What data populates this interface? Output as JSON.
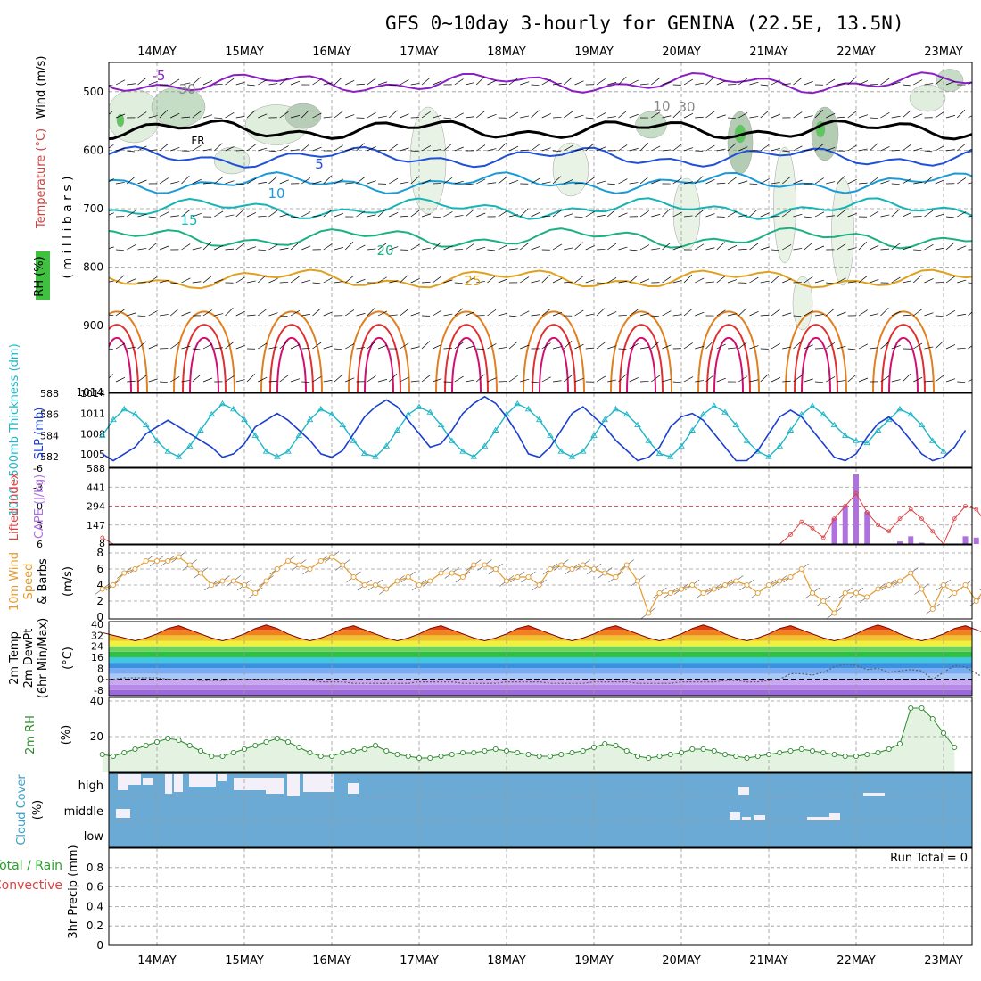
{
  "title": "GFS 0~10day 3-hourly for GENINA (22.5E, 13.5N)",
  "dates": [
    "14MAY",
    "15MAY",
    "16MAY",
    "17MAY",
    "18MAY",
    "19MAY",
    "20MAY",
    "21MAY",
    "22MAY",
    "23MAY"
  ],
  "chart_data": [
    {
      "panel": "upper-air",
      "type": "contour",
      "ylabel_parts": [
        "Wind (m/s)",
        "Temperature (°C)",
        "RH (%)"
      ],
      "ylabel2": "( m i l l i b a r s )",
      "ylim": [
        1014,
        450
      ],
      "yticks": [
        500,
        600,
        700,
        800,
        900,
        1014
      ],
      "contour_labels": [
        "-5",
        "FR",
        "5",
        "10",
        "15",
        "20",
        "25",
        "30",
        "10",
        "30"
      ],
      "isotherms": [
        {
          "name": "-5",
          "color": "#8a1fc4",
          "mean_mb": 485
        },
        {
          "name": "FR",
          "color": "#000000",
          "mean_mb": 565
        },
        {
          "name": "5",
          "color": "#2050d8",
          "mean_mb": 612
        },
        {
          "name": "10",
          "color": "#1a9ad8",
          "mean_mb": 656
        },
        {
          "name": "15",
          "color": "#16b4b4",
          "mean_mb": 700
        },
        {
          "name": "20",
          "color": "#1bb083",
          "mean_mb": 750
        },
        {
          "name": "25",
          "color": "#e0a020",
          "mean_mb": 820
        }
      ]
    },
    {
      "panel": "thickness-slp",
      "type": "line",
      "ylabel_left": "1000~500mb Thickness (dm)",
      "ylabel_right": "SLP (mb)",
      "yticks_left": [
        582,
        584,
        586,
        588
      ],
      "yticks_right": [
        1005,
        1008,
        1011,
        1014
      ],
      "ylim_left": [
        581,
        588
      ],
      "ylim_right": [
        1003,
        1014
      ],
      "series": [
        {
          "name": "Thickness",
          "color": "#1fb6c8",
          "values": [
            584,
            585.5,
            586.5,
            586,
            585,
            583.5,
            582.5,
            582,
            583,
            584.5,
            586,
            587,
            586.5,
            585.5,
            584,
            582.5,
            582,
            582.5,
            584,
            585.5,
            586.5,
            586,
            585,
            583.5,
            582.3,
            582,
            583,
            584.5,
            586,
            586.7,
            586.2,
            585,
            583.5,
            582.5,
            582,
            583,
            584.5,
            586,
            587,
            586.5,
            585.5,
            584,
            582.5,
            582,
            582.5,
            584,
            585.5,
            586.5,
            586,
            585,
            583.5,
            582.3,
            582,
            583,
            584.5,
            586,
            586.8,
            586.2,
            585,
            583.5,
            582.5,
            582,
            583,
            584.5,
            586,
            586.8,
            586,
            585,
            584,
            583.5,
            583.3,
            584.5,
            585.5,
            586.5,
            586,
            585,
            583.5,
            582.5
          ]
        },
        {
          "name": "SLP",
          "color": "#1a3fd0",
          "values": [
            1005,
            1004,
            1005,
            1006,
            1008,
            1009,
            1010,
            1009,
            1008,
            1007,
            1006,
            1004.5,
            1005,
            1006.5,
            1009,
            1010,
            1011,
            1010,
            1008.5,
            1007,
            1005,
            1004.5,
            1005.5,
            1008,
            1010.5,
            1012,
            1013,
            1012,
            1010,
            1008,
            1006,
            1006.5,
            1008.5,
            1011,
            1012.5,
            1013.5,
            1012.5,
            1010.5,
            1008,
            1005,
            1004.5,
            1006,
            1008.5,
            1011,
            1012,
            1010.5,
            1009,
            1007,
            1005.5,
            1004,
            1004.5,
            1006,
            1009,
            1010.5,
            1011,
            1010,
            1008,
            1006,
            1004,
            1004,
            1005.5,
            1008,
            1010.5,
            1011.5,
            1010.5,
            1008.5,
            1006.5,
            1004.5,
            1004,
            1005,
            1007.5,
            1009.5,
            1010.5,
            1009,
            1007,
            1005,
            1004,
            1004.5,
            1006,
            1008.5
          ]
        }
      ]
    },
    {
      "panel": "cape-li",
      "type": "bar+line",
      "ylabel_left": "Lifted Index",
      "ylabel_right": "CAPE (J/kg)",
      "yticks_left": [
        -6,
        -3,
        0,
        3,
        6
      ],
      "yticks_right": [
        8,
        147,
        294,
        441,
        588
      ],
      "ylim_left": [
        6,
        -6
      ],
      "ylim_right": [
        0,
        588
      ],
      "series": [
        {
          "name": "Lifted Index",
          "color": "#e04040",
          "values": [
            5,
            6,
            6,
            6,
            6,
            6,
            6,
            6,
            6,
            6,
            6,
            6,
            6,
            6,
            6,
            6,
            6,
            6,
            6,
            6,
            6,
            6,
            6,
            6,
            6,
            6,
            6,
            6,
            6,
            6,
            6,
            6,
            6,
            6,
            6,
            6,
            6,
            6,
            6,
            6,
            6,
            6,
            6,
            6,
            6,
            6,
            6,
            6,
            6,
            6,
            6,
            6,
            6,
            6,
            6,
            6,
            6,
            6,
            6,
            6,
            6,
            6,
            6,
            4.5,
            2.5,
            3.5,
            5,
            2,
            0,
            -2,
            1,
            3,
            4,
            2,
            0.5,
            2,
            4,
            6,
            2,
            0,
            0.5,
            3,
            4,
            5,
            6,
            5
          ]
        },
        {
          "name": "CAPE",
          "color": "#b070e0",
          "values": [
            0,
            0,
            0,
            0,
            0,
            0,
            0,
            0,
            0,
            0,
            0,
            0,
            0,
            0,
            0,
            0,
            0,
            0,
            0,
            0,
            0,
            0,
            0,
            0,
            0,
            0,
            0,
            0,
            0,
            0,
            0,
            0,
            0,
            0,
            0,
            0,
            0,
            0,
            0,
            0,
            0,
            0,
            0,
            0,
            0,
            0,
            0,
            0,
            0,
            0,
            0,
            0,
            0,
            0,
            0,
            0,
            0,
            0,
            0,
            0,
            0,
            0,
            0,
            0,
            0,
            0,
            0,
            200,
            300,
            540,
            250,
            0,
            0,
            20,
            60,
            10,
            0,
            0,
            0,
            60,
            50,
            30,
            0,
            0,
            0,
            0
          ]
        }
      ]
    },
    {
      "panel": "wind10m",
      "type": "line",
      "ylabel": "10m Wind Speed & Barbs (m/s)",
      "yticks": [
        0,
        2,
        4,
        6,
        8
      ],
      "ylim": [
        0,
        9
      ],
      "series": [
        {
          "name": "10m Wind Speed",
          "color": "#e49a30",
          "values": [
            3.5,
            4,
            5.5,
            6,
            7,
            7,
            7,
            7.5,
            6.5,
            5.5,
            4,
            4.5,
            4.5,
            4,
            3,
            4.5,
            6,
            7,
            6.5,
            6,
            7,
            7.5,
            6.5,
            5,
            4,
            4,
            3.5,
            4.5,
            5,
            4,
            4.5,
            5.5,
            5.5,
            5,
            6.5,
            6.5,
            6,
            4.5,
            5,
            5,
            4,
            6,
            6.5,
            6,
            6.5,
            6,
            5.5,
            5,
            6.5,
            4.5,
            0.5,
            3,
            3,
            3.5,
            4,
            3,
            3.5,
            4,
            4.5,
            4,
            3,
            4,
            4.5,
            5,
            6,
            3,
            2,
            0.5,
            3,
            3,
            2.5,
            3.5,
            4,
            4.5,
            5.5,
            3.5,
            1,
            4,
            3,
            4,
            2,
            4,
            4,
            3,
            3,
            3.5,
            2,
            3,
            2.5,
            5.5
          ]
        }
      ]
    },
    {
      "panel": "temp2m",
      "type": "area+line",
      "ylabel": "2m Temp 2m DewPt (6hr Min/Max) (°C)",
      "yticks": [
        -8,
        0,
        8,
        16,
        24,
        32,
        40
      ],
      "ylim": [
        -12,
        42
      ],
      "series": [
        {
          "name": "2m Temp",
          "color": "#7a0000",
          "values": [
            34,
            32,
            30,
            28,
            30,
            33,
            37,
            39,
            36,
            33,
            30,
            28,
            30,
            33,
            37,
            39.5,
            37,
            33,
            30,
            28,
            30,
            33,
            37,
            39,
            36,
            33,
            30,
            28,
            30,
            33,
            37,
            39,
            36,
            33,
            30,
            28,
            30,
            33,
            37,
            39,
            36,
            33,
            30,
            28,
            30,
            33,
            37,
            39,
            36,
            33,
            30,
            28,
            30,
            33,
            37,
            39.5,
            37,
            33,
            30,
            28,
            30,
            33,
            37,
            39,
            36,
            33,
            30,
            28,
            30,
            33,
            37,
            39.5,
            37,
            33,
            30,
            28,
            30,
            33,
            37,
            39,
            36,
            33,
            30,
            28,
            30,
            33,
            36,
            38,
            35,
            30
          ]
        },
        {
          "name": "2m DewPt",
          "color": "#606060",
          "values": [
            0,
            0,
            1,
            1,
            1,
            1,
            0,
            0,
            0,
            -1,
            -1,
            -1,
            0,
            0,
            0,
            0,
            0,
            0,
            0,
            -1,
            -2,
            -2,
            -2,
            -3,
            -3,
            -3,
            -3,
            -3,
            -3,
            -2,
            -2,
            -2,
            -2,
            -3,
            -3,
            -3,
            -3,
            -2,
            -2,
            -2,
            -2,
            -3,
            -3,
            -3,
            -3,
            -2,
            -2,
            -2,
            -2,
            -3,
            -3,
            -3,
            -3,
            -2,
            -2,
            -2,
            -2,
            -1,
            -1,
            -2,
            -2,
            -1,
            0,
            4,
            4,
            3,
            5,
            9,
            11,
            10,
            7,
            8,
            5,
            6,
            7,
            6,
            0,
            5,
            10,
            9,
            4,
            0,
            -1,
            -1,
            -2,
            -2,
            -2,
            -3,
            -3,
            -2,
            2
          ]
        }
      ]
    },
    {
      "panel": "rh2m",
      "type": "area+line",
      "ylabel": "2m RH (%)",
      "yticks": [
        20,
        40
      ],
      "ylim": [
        0,
        42
      ],
      "series": [
        {
          "name": "2m RH",
          "color": "#2a8a2a",
          "values": [
            10,
            9,
            11,
            13,
            15,
            17,
            19,
            18,
            15,
            12,
            9,
            9,
            11,
            13,
            15,
            17,
            19,
            17,
            14,
            11,
            9,
            9,
            11,
            12,
            13,
            15,
            12,
            10,
            9,
            8,
            8,
            9,
            10,
            11,
            11,
            12,
            13,
            12,
            11,
            10,
            9,
            9,
            10,
            11,
            12,
            14,
            16,
            15,
            12,
            9,
            8,
            9,
            10,
            11,
            13,
            13,
            12,
            10,
            9,
            8,
            9,
            10,
            11,
            12,
            13,
            12,
            11,
            10,
            9,
            9,
            10,
            11,
            13,
            16,
            36,
            36,
            30,
            22,
            14,
            15,
            22,
            20,
            10,
            9,
            10,
            10,
            12,
            18,
            35,
            18,
            10,
            8,
            8,
            9,
            10,
            10,
            11,
            12,
            13,
            22
          ]
        }
      ]
    },
    {
      "panel": "cloud",
      "type": "heatmap",
      "ylabel": "Cloud Cover (%)",
      "yticks": [
        "high",
        "middle",
        "low"
      ],
      "color": "#6aaad4"
    },
    {
      "panel": "precip",
      "type": "bar",
      "ylabel_main": "3hr Precip (mm)",
      "ylabel_green": "Total / Rain",
      "ylabel_red": "Convective",
      "yticks": [
        0,
        0.2,
        0.4,
        0.6,
        0.8
      ],
      "ylim": [
        0,
        1
      ],
      "annotation": "Run Total = 0",
      "values": []
    }
  ]
}
